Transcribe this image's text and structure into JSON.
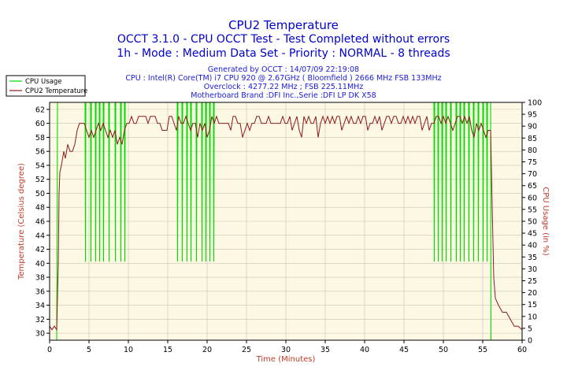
{
  "chart_data": {
    "type": "line",
    "title": "CPU2 Temperature",
    "subtitle_lines": [
      "OCCT 3.1.0 - CPU OCCT Test - Test Completed without errors",
      "1h - Mode : Medium Data Set - Priority : NORMAL - 8 threads"
    ],
    "info_lines": [
      "Generated by OCCT : 14/07/09 22:19:08",
      "CPU : Intel(R) Core(TM) i7 CPU 920 @ 2.67GHz ( Bloomfield ) 2666 MHz FSB 133MHz",
      "Overclock : 4277.22 MHz ; FSB 225.11MHz",
      "Motherboard Brand :DFI Inc.,Serie :DFI LP DK X58"
    ],
    "xlabel": "Time (Minutes)",
    "ylabel": "Temperature (Celsius degree)",
    "y2label": "CPU Usage (in %)",
    "xlim": [
      0,
      60
    ],
    "ylim": [
      29,
      63
    ],
    "y2lim": [
      0,
      100
    ],
    "x_ticks": [
      0,
      5,
      10,
      15,
      20,
      25,
      30,
      35,
      40,
      45,
      50,
      55,
      60
    ],
    "y_ticks": [
      30,
      32,
      34,
      36,
      38,
      40,
      42,
      44,
      46,
      48,
      50,
      52,
      54,
      56,
      58,
      60,
      62
    ],
    "y2_ticks": [
      0,
      5,
      10,
      15,
      20,
      25,
      30,
      35,
      40,
      45,
      50,
      55,
      60,
      65,
      70,
      75,
      80,
      85,
      90,
      95,
      100
    ],
    "grid": true,
    "legend_position": "top-left-outside",
    "series": [
      {
        "name": "CPU Usage",
        "axis": "right",
        "color": "#00dd00",
        "x": [
          0,
          0.9,
          1.0,
          1.1,
          1.3,
          1.5,
          2,
          2.5,
          3,
          4.5,
          4.55,
          4.6,
          5.2,
          5.25,
          5.3,
          5.8,
          5.85,
          5.9,
          6.3,
          6.35,
          6.4,
          6.8,
          6.85,
          6.9,
          7.5,
          7.55,
          7.6,
          8.3,
          8.35,
          8.4,
          9.0,
          9.05,
          9.1,
          9.5,
          9.55,
          9.6,
          10,
          11,
          12,
          13,
          14,
          15,
          16.2,
          16.25,
          16.3,
          16.8,
          16.85,
          16.9,
          17.4,
          17.45,
          17.5,
          17.9,
          17.95,
          18.0,
          18.6,
          18.65,
          18.7,
          19.3,
          19.35,
          19.4,
          19.8,
          19.85,
          19.9,
          20.3,
          20.35,
          20.4,
          20.8,
          20.85,
          20.9,
          21.5,
          22,
          24,
          26,
          28,
          30,
          32,
          34,
          36,
          38,
          40,
          42,
          44,
          45.0,
          46,
          48,
          48.8,
          48.85,
          48.9,
          49.3,
          49.35,
          49.4,
          49.8,
          49.85,
          49.9,
          50.3,
          50.35,
          50.4,
          50.9,
          50.95,
          51.0,
          51.6,
          51.65,
          51.7,
          52.1,
          52.15,
          52.2,
          52.6,
          52.65,
          52.7,
          53.2,
          53.25,
          53.3,
          53.8,
          53.85,
          53.9,
          54.4,
          54.45,
          54.5,
          55.0,
          55.05,
          55.1,
          55.5,
          55.55,
          55.6,
          56.0,
          56.05,
          56.3,
          57,
          58,
          59,
          60
        ],
        "values": [
          0,
          0,
          100,
          100,
          100,
          100,
          100,
          100,
          100,
          100,
          33,
          100,
          100,
          33,
          100,
          100,
          33,
          100,
          100,
          33,
          100,
          100,
          33,
          100,
          100,
          33,
          100,
          100,
          33,
          100,
          100,
          33,
          100,
          100,
          33,
          100,
          100,
          100,
          100,
          100,
          100,
          100,
          100,
          33,
          100,
          100,
          33,
          100,
          100,
          33,
          100,
          100,
          33,
          100,
          100,
          33,
          100,
          100,
          33,
          100,
          100,
          33,
          100,
          100,
          33,
          100,
          100,
          33,
          100,
          100,
          100,
          100,
          100,
          100,
          100,
          100,
          100,
          100,
          100,
          100,
          100,
          100,
          100,
          100,
          100,
          100,
          33,
          100,
          100,
          33,
          100,
          100,
          33,
          100,
          100,
          33,
          100,
          100,
          33,
          100,
          100,
          33,
          100,
          100,
          33,
          100,
          100,
          33,
          100,
          100,
          33,
          100,
          100,
          33,
          100,
          100,
          33,
          100,
          100,
          33,
          100,
          100,
          33,
          100,
          100,
          0,
          0,
          0,
          0,
          0,
          0
        ]
      },
      {
        "name": "CPU2 Temperature",
        "axis": "left",
        "color": "#8b1a1a",
        "x": [
          0,
          0.3,
          0.6,
          0.9,
          1.1,
          1.2,
          1.3,
          1.5,
          1.8,
          2.0,
          2.3,
          2.6,
          2.9,
          3.2,
          3.5,
          3.8,
          4.1,
          4.4,
          4.7,
          5.0,
          5.3,
          5.6,
          5.9,
          6.2,
          6.5,
          6.8,
          7.1,
          7.4,
          7.7,
          8.0,
          8.3,
          8.6,
          8.9,
          9.2,
          9.5,
          9.8,
          10.1,
          10.4,
          10.7,
          11.0,
          11.3,
          11.6,
          11.9,
          12.2,
          12.5,
          12.8,
          13.1,
          13.4,
          13.7,
          14.0,
          14.3,
          14.6,
          14.9,
          15.2,
          15.5,
          15.8,
          16.1,
          16.4,
          16.7,
          17.0,
          17.3,
          17.6,
          17.9,
          18.2,
          18.5,
          18.8,
          19.1,
          19.4,
          19.7,
          20.0,
          20.3,
          20.6,
          20.9,
          21.2,
          21.5,
          21.8,
          22.1,
          22.4,
          22.7,
          23.0,
          23.3,
          23.6,
          23.9,
          24.2,
          24.5,
          24.8,
          25.1,
          25.4,
          25.7,
          26.0,
          26.3,
          26.6,
          26.9,
          27.2,
          27.5,
          27.8,
          28.1,
          28.4,
          28.7,
          29.0,
          29.3,
          29.6,
          29.9,
          30.2,
          30.5,
          30.8,
          31.1,
          31.4,
          31.7,
          32.0,
          32.3,
          32.6,
          32.9,
          33.2,
          33.5,
          33.8,
          34.1,
          34.4,
          34.7,
          35.0,
          35.3,
          35.6,
          35.9,
          36.2,
          36.5,
          36.8,
          37.1,
          37.4,
          37.7,
          38.0,
          38.3,
          38.6,
          38.9,
          39.2,
          39.5,
          39.8,
          40.1,
          40.4,
          40.7,
          41.0,
          41.3,
          41.6,
          41.9,
          42.2,
          42.5,
          42.8,
          43.1,
          43.4,
          43.7,
          44.0,
          44.3,
          44.6,
          44.9,
          45.2,
          45.5,
          45.8,
          46.1,
          46.4,
          46.7,
          47.0,
          47.3,
          47.6,
          47.9,
          48.2,
          48.5,
          48.8,
          49.1,
          49.4,
          49.7,
          50.0,
          50.3,
          50.6,
          50.9,
          51.2,
          51.5,
          51.8,
          52.1,
          52.4,
          52.7,
          53.0,
          53.3,
          53.6,
          53.9,
          54.2,
          54.5,
          54.8,
          55.1,
          55.4,
          55.7,
          56.0,
          56.2,
          56.4,
          56.6,
          57.0,
          57.5,
          58.0,
          58.5,
          59.0,
          59.5,
          60.0
        ],
        "values": [
          31,
          30.5,
          31,
          30.5,
          40,
          50,
          53,
          54,
          56,
          55,
          57,
          56,
          56,
          57,
          59,
          60,
          60,
          60,
          59,
          58,
          59,
          58,
          59,
          60,
          59,
          60,
          59,
          58,
          59,
          58,
          59,
          57,
          58,
          57,
          59,
          60,
          60,
          61,
          60,
          60,
          61,
          61,
          61,
          61,
          60,
          61,
          61,
          61,
          60,
          60,
          59,
          59,
          59,
          61,
          61,
          60,
          59,
          61,
          60,
          60,
          61,
          60,
          59,
          60,
          60,
          58,
          60,
          59,
          60,
          58,
          59,
          61,
          60,
          61,
          60,
          60,
          60,
          60,
          60,
          59,
          61,
          61,
          60,
          60,
          58,
          59,
          60,
          59,
          60,
          60,
          61,
          61,
          60,
          60,
          60,
          61,
          60,
          60,
          60,
          60,
          60,
          61,
          60,
          60,
          61,
          59,
          60,
          61,
          59,
          58,
          61,
          60,
          61,
          60,
          60,
          61,
          58,
          60,
          61,
          60,
          61,
          60,
          61,
          60,
          61,
          61,
          59,
          60,
          61,
          60,
          61,
          60,
          60,
          61,
          60,
          61,
          61,
          59,
          60,
          60,
          61,
          60,
          61,
          59,
          60,
          61,
          61,
          60,
          61,
          61,
          60,
          60,
          61,
          60,
          61,
          60,
          61,
          60,
          61,
          61,
          59,
          60,
          61,
          59,
          60,
          60,
          61,
          61,
          60,
          61,
          60,
          61,
          60,
          59,
          60,
          61,
          61,
          60,
          61,
          60,
          61,
          59,
          58,
          60,
          59,
          60,
          59,
          58,
          59,
          59,
          48,
          38,
          35,
          34,
          33,
          33,
          32,
          31,
          31,
          30.5
        ]
      }
    ]
  },
  "colors": {
    "title": "#0000cc",
    "info_text": "#1a1ad6",
    "plot_bg": "#fdf8e4",
    "grid": "#c8c4b0",
    "temperature_line": "#8b1a1a",
    "cpu_usage_line": "#00dd00",
    "axis_label": "#c0392b"
  }
}
